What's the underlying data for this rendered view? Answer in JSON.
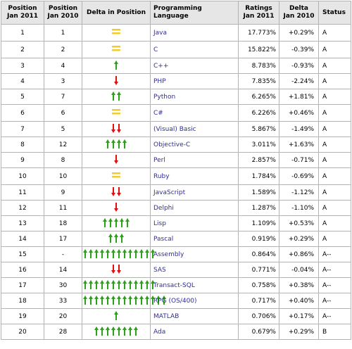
{
  "table": {
    "headers": {
      "pos2011": [
        "Position",
        "Jan 2011"
      ],
      "pos2010": [
        "Position",
        "Jan 2010"
      ],
      "delta_position": "Delta in Position",
      "language": "Programming Language",
      "ratings": [
        "Ratings",
        "Jan 2011"
      ],
      "delta": [
        "Delta",
        "Jan 2010"
      ],
      "status": "Status"
    },
    "rows": [
      {
        "pos2011": "1",
        "pos2010": "1",
        "trend": "equal",
        "count": 1,
        "language": "Java",
        "rating": "17.773%",
        "delta": "+0.29%",
        "status": "A"
      },
      {
        "pos2011": "2",
        "pos2010": "2",
        "trend": "equal",
        "count": 1,
        "language": "C",
        "rating": "15.822%",
        "delta": "-0.39%",
        "status": "A"
      },
      {
        "pos2011": "3",
        "pos2010": "4",
        "trend": "up",
        "count": 1,
        "language": "C++",
        "rating": "8.783%",
        "delta": "-0.93%",
        "status": "A"
      },
      {
        "pos2011": "4",
        "pos2010": "3",
        "trend": "down",
        "count": 1,
        "language": "PHP",
        "rating": "7.835%",
        "delta": "-2.24%",
        "status": "A"
      },
      {
        "pos2011": "5",
        "pos2010": "7",
        "trend": "up",
        "count": 2,
        "language": "Python",
        "rating": "6.265%",
        "delta": "+1.81%",
        "status": "A"
      },
      {
        "pos2011": "6",
        "pos2010": "6",
        "trend": "equal",
        "count": 1,
        "language": "C#",
        "rating": "6.226%",
        "delta": "+0.46%",
        "status": "A"
      },
      {
        "pos2011": "7",
        "pos2010": "5",
        "trend": "down",
        "count": 2,
        "language": "(Visual) Basic",
        "rating": "5.867%",
        "delta": "-1.49%",
        "status": "A"
      },
      {
        "pos2011": "8",
        "pos2010": "12",
        "trend": "up",
        "count": 4,
        "language": "Objective-C",
        "rating": "3.011%",
        "delta": "+1.63%",
        "status": "A"
      },
      {
        "pos2011": "9",
        "pos2010": "8",
        "trend": "down",
        "count": 1,
        "language": "Perl",
        "rating": "2.857%",
        "delta": "-0.71%",
        "status": "A"
      },
      {
        "pos2011": "10",
        "pos2010": "10",
        "trend": "equal",
        "count": 1,
        "language": "Ruby",
        "rating": "1.784%",
        "delta": "-0.69%",
        "status": "A"
      },
      {
        "pos2011": "11",
        "pos2010": "9",
        "trend": "down",
        "count": 2,
        "language": "JavaScript",
        "rating": "1.589%",
        "delta": "-1.12%",
        "status": "A"
      },
      {
        "pos2011": "12",
        "pos2010": "11",
        "trend": "down",
        "count": 1,
        "language": "Delphi",
        "rating": "1.287%",
        "delta": "-1.10%",
        "status": "A"
      },
      {
        "pos2011": "13",
        "pos2010": "18",
        "trend": "up",
        "count": 5,
        "language": "Lisp",
        "rating": "1.109%",
        "delta": "+0.53%",
        "status": "A"
      },
      {
        "pos2011": "14",
        "pos2010": "17",
        "trend": "up",
        "count": 3,
        "language": "Pascal",
        "rating": "0.919%",
        "delta": "+0.29%",
        "status": "A"
      },
      {
        "pos2011": "15",
        "pos2010": "-",
        "trend": "up",
        "count": 13,
        "language": "Assembly",
        "rating": "0.864%",
        "delta": "+0.86%",
        "status": "A--"
      },
      {
        "pos2011": "16",
        "pos2010": "14",
        "trend": "down",
        "count": 2,
        "language": "SAS",
        "rating": "0.771%",
        "delta": "-0.04%",
        "status": "A--"
      },
      {
        "pos2011": "17",
        "pos2010": "30",
        "trend": "up",
        "count": 13,
        "language": "Transact-SQL",
        "rating": "0.758%",
        "delta": "+0.38%",
        "status": "A--"
      },
      {
        "pos2011": "18",
        "pos2010": "33",
        "trend": "up",
        "count": 15,
        "language": "RPG (OS/400)",
        "rating": "0.717%",
        "delta": "+0.40%",
        "status": "A--"
      },
      {
        "pos2011": "19",
        "pos2010": "20",
        "trend": "up",
        "count": 1,
        "language": "MATLAB",
        "rating": "0.706%",
        "delta": "+0.17%",
        "status": "A--"
      },
      {
        "pos2011": "20",
        "pos2010": "28",
        "trend": "up",
        "count": 8,
        "language": "Ada",
        "rating": "0.679%",
        "delta": "+0.29%",
        "status": "B"
      }
    ]
  },
  "colors": {
    "up": "#2f9e1f",
    "down": "#e01010",
    "equal": "#f2cc2c",
    "link": "#2d2d9b"
  }
}
